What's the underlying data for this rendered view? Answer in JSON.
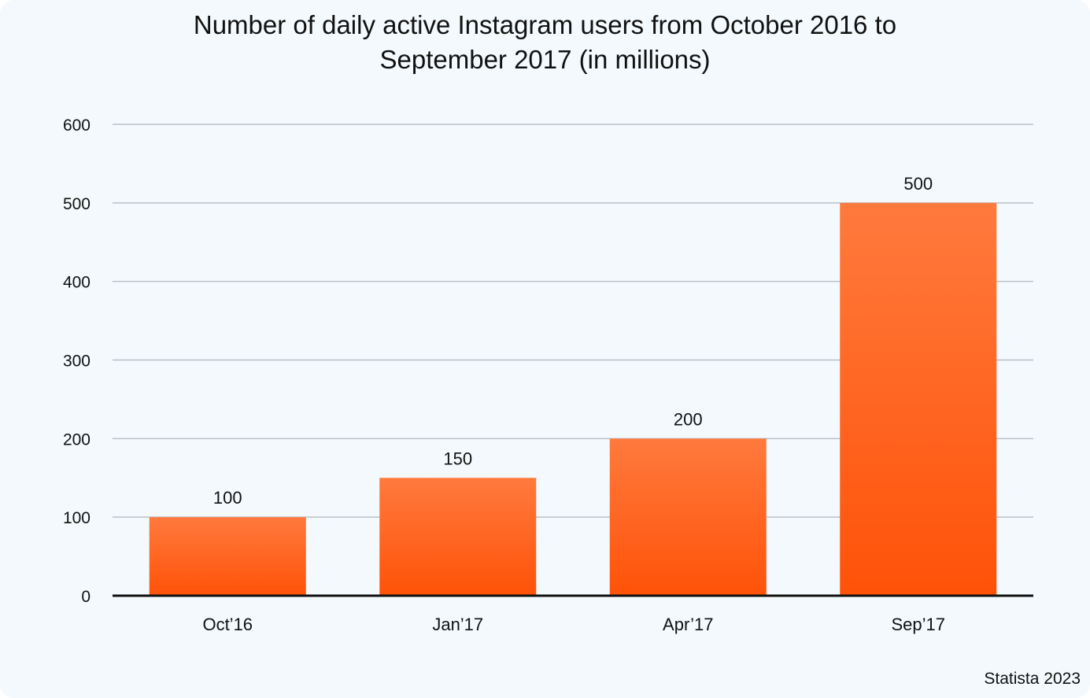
{
  "chart_data": {
    "type": "bar",
    "title_lines": [
      "Number of daily active Instagram users from October 2016 to",
      "September 2017 (in millions)"
    ],
    "categories": [
      "Oct’16",
      "Jan’17",
      "Apr’17",
      "Sep’17"
    ],
    "values": [
      100,
      150,
      200,
      500
    ],
    "data_labels": [
      "100",
      "150",
      "200",
      "500"
    ],
    "y_ticks": [
      0,
      100,
      200,
      300,
      400,
      500,
      600
    ],
    "ylim": [
      0,
      600
    ],
    "xlabel": "",
    "ylabel": "",
    "grid": true,
    "legend": "none"
  },
  "colors": {
    "bar_top": "#ff7a3d",
    "bar_bottom": "#ff5208",
    "grid": "#b9c0c8",
    "axis": "#111111",
    "text": "#111111",
    "background": "#f3f9fd"
  },
  "footer": {
    "source": "Statista 2023"
  }
}
